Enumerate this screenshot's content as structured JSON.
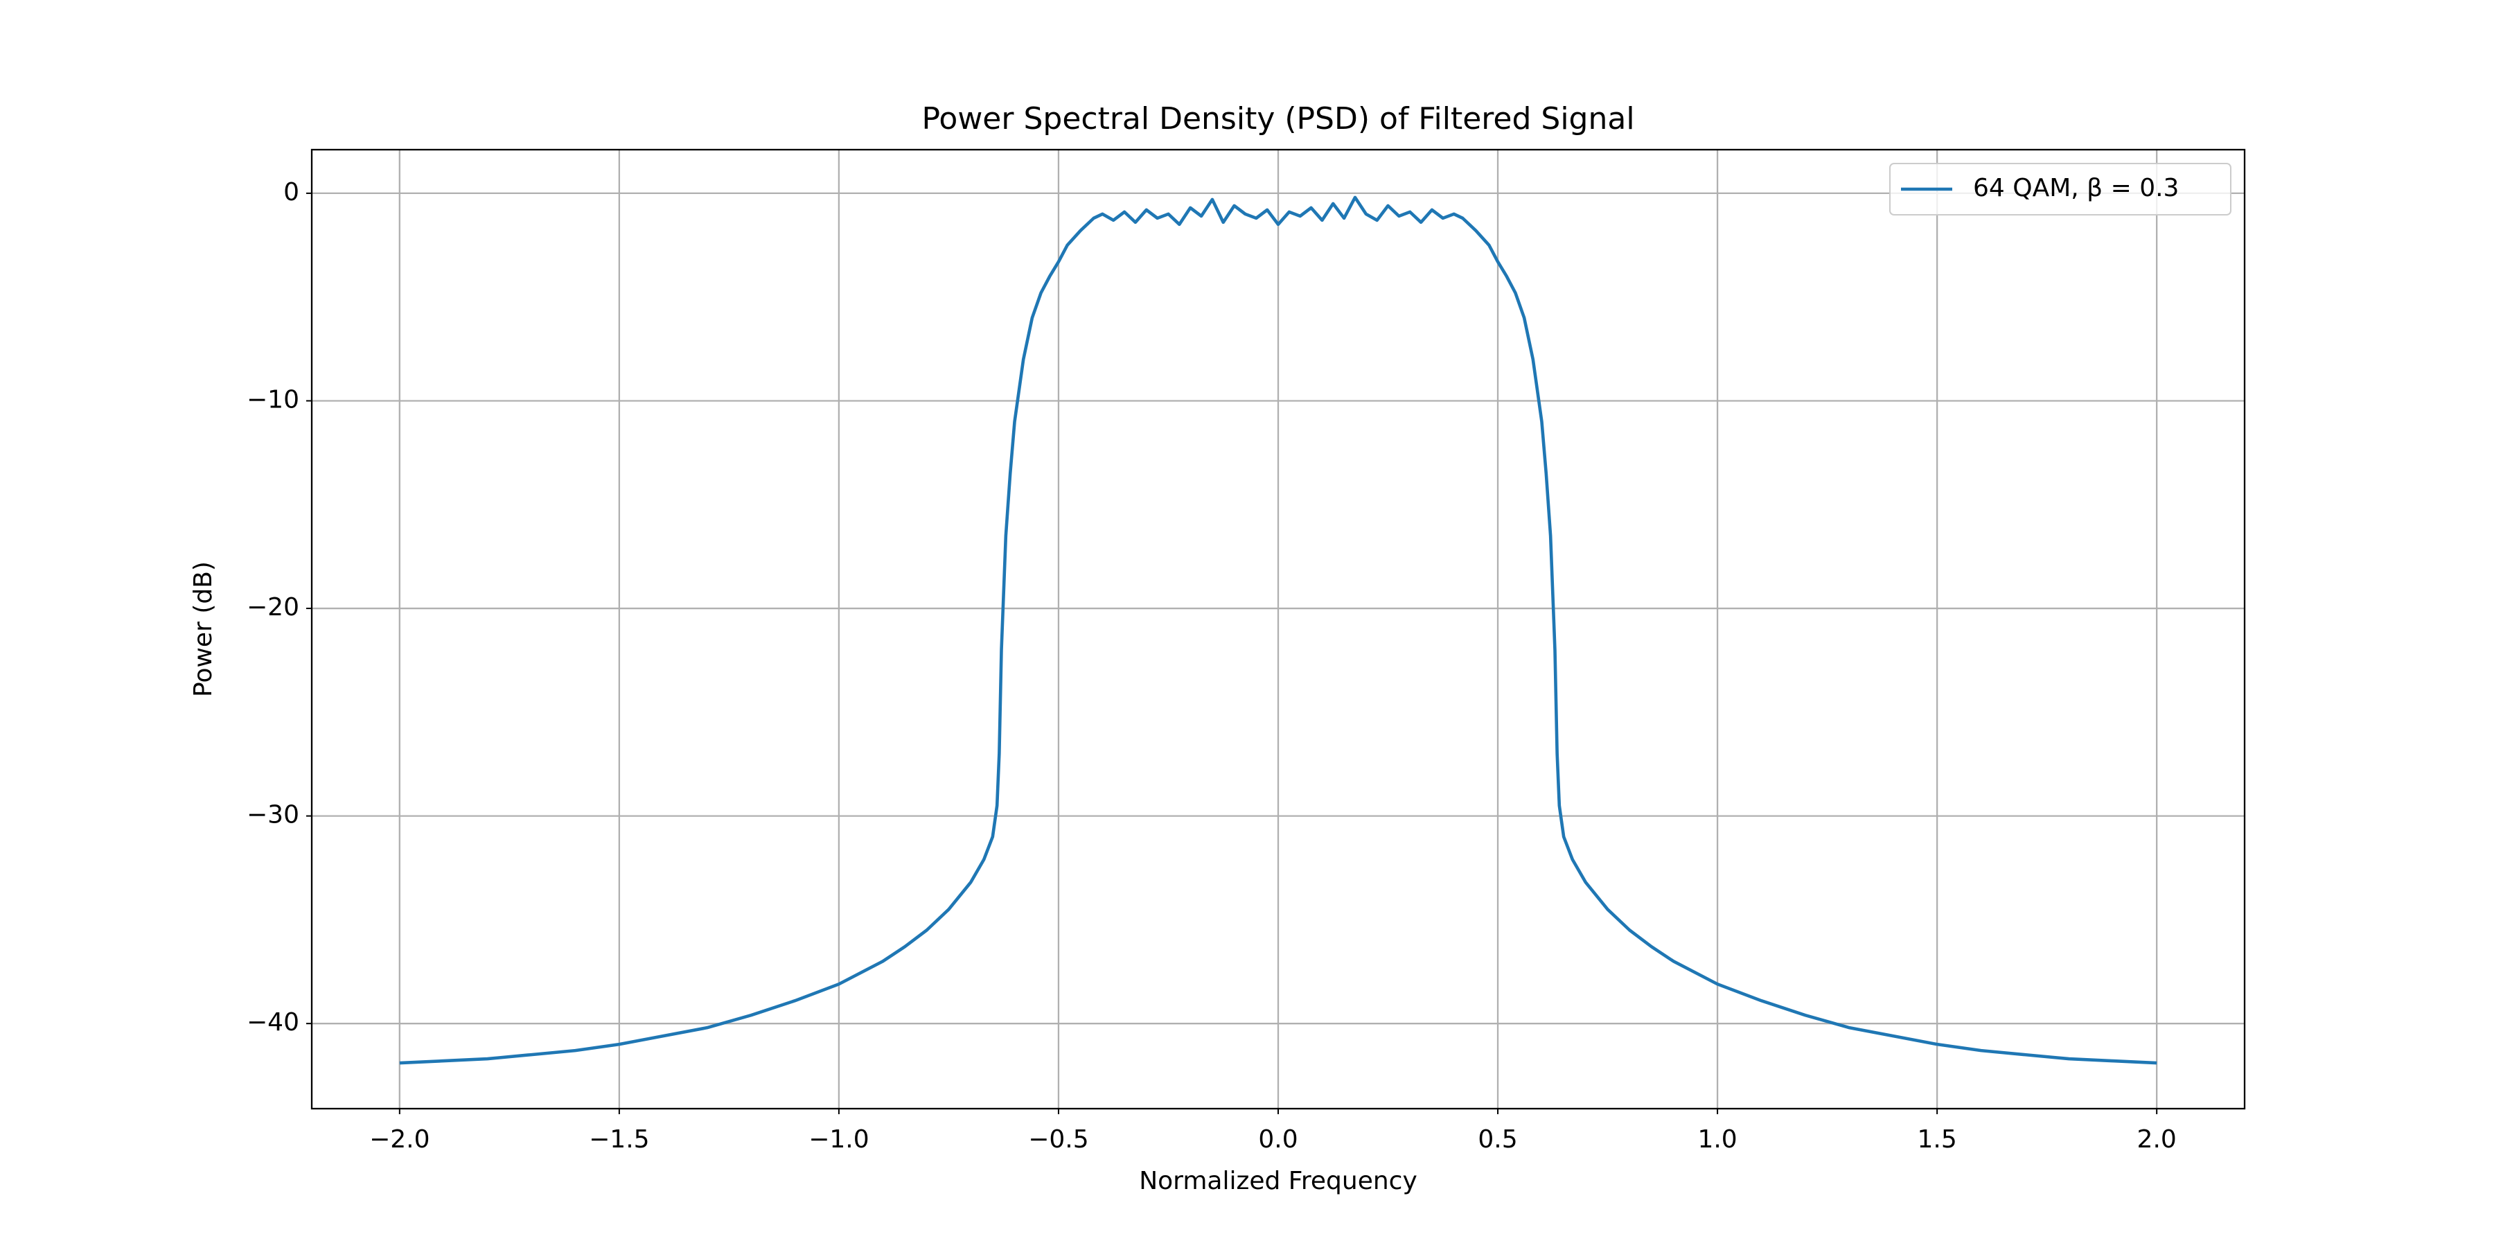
{
  "chart_data": {
    "type": "line",
    "title": "Power Spectral Density (PSD) of Filtered Signal",
    "x_label": "Normalized Frequency",
    "y_label": "Power (dB)",
    "xlim": [
      -2.2,
      2.2
    ],
    "ylim": [
      -44.1,
      2.1
    ],
    "xticks": [
      {
        "value": -2,
        "label": "−2.0"
      },
      {
        "value": -1.5,
        "label": "−1.5"
      },
      {
        "value": -1,
        "label": "−1.0"
      },
      {
        "value": -0.5,
        "label": "−0.5"
      },
      {
        "value": 0,
        "label": "0.0"
      },
      0.5,
      {
        "value": 1,
        "label": "1.0"
      },
      1.5,
      {
        "value": 2,
        "label": "2.0"
      }
    ],
    "yticks": [
      {
        "value": -40,
        "label": "−40"
      },
      {
        "value": -30,
        "label": "−30"
      },
      {
        "value": -20,
        "label": "−20"
      },
      {
        "value": -10,
        "label": "−10"
      },
      0
    ],
    "grid": true,
    "legend": "upper right",
    "x": [
      -2.0,
      -1.9,
      -1.8,
      -1.7,
      -1.6,
      -1.5,
      -1.4,
      -1.3,
      -1.2,
      -1.1,
      -1.0,
      -0.9,
      -0.85,
      -0.8,
      -0.75,
      -0.7,
      -0.67,
      -0.65,
      -0.64,
      -0.635,
      -0.63,
      -0.62,
      -0.61,
      -0.6,
      -0.58,
      -0.56,
      -0.54,
      -0.52,
      -0.5,
      -0.48,
      -0.45,
      -0.42,
      -0.4,
      -0.375,
      -0.35,
      -0.325,
      -0.3,
      -0.275,
      -0.25,
      -0.225,
      -0.2,
      -0.175,
      -0.15,
      -0.125,
      -0.1,
      -0.075,
      -0.05,
      -0.025,
      0,
      0.025,
      0.05,
      0.075,
      0.1,
      0.125,
      0.15,
      0.175,
      0.2,
      0.225,
      0.25,
      0.275,
      0.3,
      0.325,
      0.35,
      0.375,
      0.4,
      0.42,
      0.45,
      0.48,
      0.5,
      0.52,
      0.54,
      0.56,
      0.58,
      0.6,
      0.61,
      0.62,
      0.63,
      0.635,
      0.64,
      0.65,
      0.67,
      0.7,
      0.75,
      0.8,
      0.85,
      0.9,
      1.0,
      1.1,
      1.2,
      1.3,
      1.4,
      1.5,
      1.6,
      1.7,
      1.8,
      1.9,
      2.0
    ],
    "series": [
      {
        "name": "64 QAM, β = 0.3",
        "color": "#1f77b4",
        "values": [
          -41.9,
          -41.8,
          -41.7,
          -41.5,
          -41.3,
          -41.0,
          -40.6,
          -40.2,
          -39.6,
          -38.9,
          -38.1,
          -37.0,
          -36.3,
          -35.5,
          -34.5,
          -33.2,
          -32.1,
          -31.0,
          -29.5,
          -27.0,
          -22.0,
          -16.5,
          -13.5,
          -11.0,
          -8.0,
          -6.0,
          -4.8,
          -4.0,
          -3.3,
          -2.5,
          -1.8,
          -1.2,
          -1.0,
          -1.3,
          -0.9,
          -1.4,
          -0.8,
          -1.2,
          -1.0,
          -1.5,
          -0.7,
          -1.1,
          -0.3,
          -1.4,
          -0.6,
          -1.0,
          -1.2,
          -0.8,
          -1.5,
          -0.9,
          -1.1,
          -0.7,
          -1.3,
          -0.5,
          -1.2,
          -0.2,
          -1.0,
          -1.3,
          -0.6,
          -1.1,
          -0.9,
          -1.4,
          -0.8,
          -1.2,
          -1.0,
          -1.2,
          -1.8,
          -2.5,
          -3.3,
          -4.0,
          -4.8,
          -6.0,
          -8.0,
          -11.0,
          -13.5,
          -16.5,
          -22.0,
          -27.0,
          -29.5,
          -31.0,
          -32.1,
          -33.2,
          -34.5,
          -35.5,
          -36.3,
          -37.0,
          -38.1,
          -38.9,
          -39.6,
          -40.2,
          -40.6,
          -41.0,
          -41.3,
          -41.5,
          -41.7,
          -41.8,
          -41.9
        ]
      }
    ]
  }
}
